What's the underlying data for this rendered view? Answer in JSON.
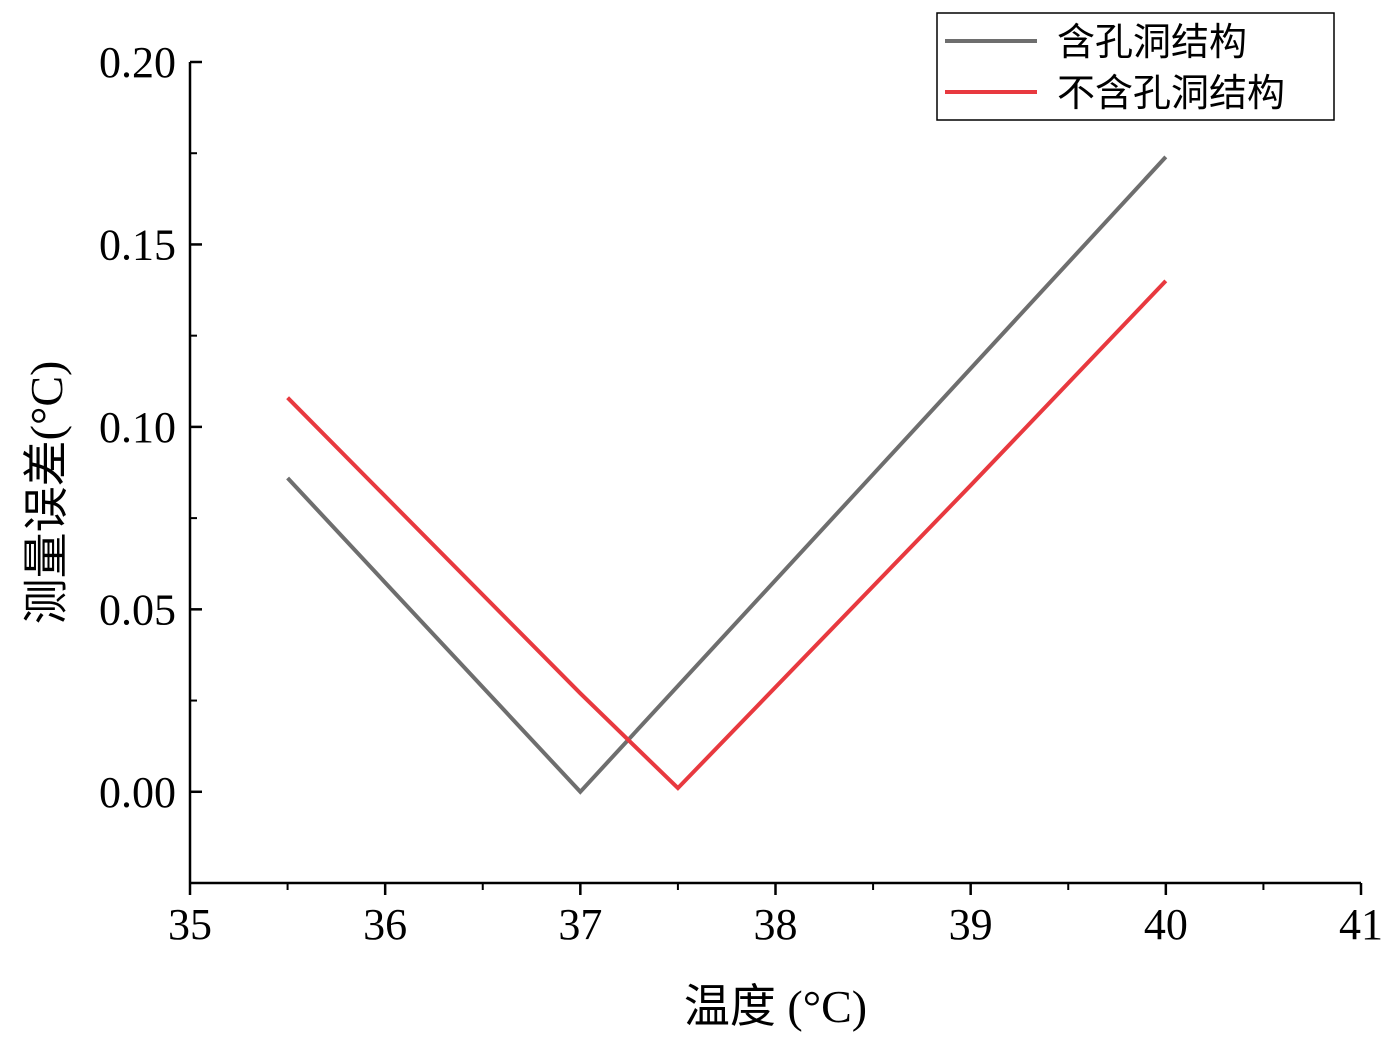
{
  "chart_data": {
    "type": "line",
    "xlabel": "温度 (°C)",
    "ylabel": "测量误差(°C)",
    "xlim": [
      35,
      41
    ],
    "ylim": [
      -0.025,
      0.2
    ],
    "x_ticks": [
      35,
      36,
      37,
      38,
      39,
      40,
      41
    ],
    "y_ticks": [
      0.0,
      0.05,
      0.1,
      0.15,
      0.2
    ],
    "x_tick_labels": [
      "35",
      "36",
      "37",
      "38",
      "39",
      "40",
      "41"
    ],
    "y_tick_labels": [
      "0.00",
      "0.05",
      "0.10",
      "0.15",
      "0.20"
    ],
    "grid": false,
    "legend_position": "top-right",
    "series": [
      {
        "name": "含孔洞结构",
        "color": "#6e6e6e",
        "x": [
          35.5,
          37.0,
          38.5,
          40.0
        ],
        "y": [
          0.086,
          0.0,
          0.087,
          0.174
        ]
      },
      {
        "name": "不含孔洞结构",
        "color": "#e8393f",
        "x": [
          35.5,
          37.0,
          37.5,
          39.0,
          40.0
        ],
        "y": [
          0.108,
          0.027,
          0.001,
          0.084,
          0.14
        ]
      }
    ]
  }
}
